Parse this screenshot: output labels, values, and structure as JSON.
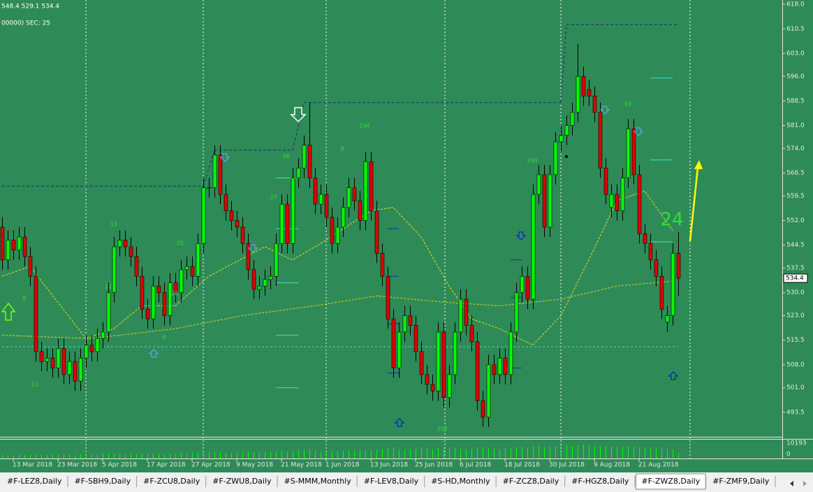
{
  "header": {
    "info": "548.4 529.1 534.4",
    "indicator": "00000)  SEC: 25"
  },
  "chart_data": {
    "type": "candlestick",
    "categories": [
      null,
      null,
      "13 Mar 2018",
      null,
      null,
      null,
      null,
      null,
      null,
      null,
      "23 Mar 2018",
      null,
      null,
      null,
      null,
      null,
      null,
      null,
      "5 Apr 2018",
      null,
      null,
      null,
      null,
      null,
      null,
      null,
      "17 Apr 2018",
      null,
      null,
      null,
      null,
      null,
      null,
      null,
      "27 Apr 2018",
      null,
      null,
      null,
      null,
      null,
      null,
      null,
      "9 May 2018",
      null,
      null,
      null,
      null,
      null,
      null,
      null,
      "21 May 2018",
      null,
      null,
      null,
      null,
      null,
      null,
      null,
      "1 Jun 2018",
      null,
      null,
      null,
      null,
      null,
      null,
      null,
      "13 Jun 2018",
      null,
      null,
      null,
      null,
      null,
      null,
      null,
      "25 Jun 2018",
      null,
      null,
      null,
      null,
      null,
      null,
      null,
      "6 Jul 2018",
      null,
      null,
      null,
      null,
      null,
      null,
      null,
      "18 Jul 2018",
      null,
      null,
      null,
      null,
      null,
      null,
      null,
      "30 Jul 2018",
      null,
      null,
      null,
      null,
      null,
      null,
      null,
      "9 Aug 2018",
      null,
      null,
      null,
      null,
      null,
      null,
      null,
      "21 Aug 2018",
      null,
      null,
      null,
      null,
      null,
      null,
      null
    ],
    "open": [
      550,
      540,
      546,
      543,
      547,
      541,
      535,
      512,
      509,
      510,
      507,
      513,
      505,
      509,
      503,
      510,
      514,
      512,
      516,
      518,
      530,
      544,
      546,
      544,
      541,
      535,
      525,
      522,
      532,
      530,
      523,
      533,
      530,
      537,
      538,
      535,
      545,
      562,
      562,
      572,
      560,
      555,
      552,
      550,
      545,
      537,
      531,
      532,
      534,
      535,
      545,
      557,
      545,
      565,
      568,
      575,
      565,
      557,
      560,
      553,
      545,
      550,
      556,
      562,
      558,
      552,
      570,
      555,
      542,
      535,
      522,
      507,
      518,
      523,
      520,
      512,
      505,
      502,
      500,
      518,
      498,
      505,
      518,
      528,
      520,
      515,
      497,
      492,
      508,
      505,
      510,
      505,
      518,
      530,
      535,
      528,
      560,
      566,
      550,
      566,
      576,
      578,
      581,
      585,
      596,
      592,
      590,
      585,
      568,
      556,
      560,
      555,
      565,
      580,
      566,
      548,
      545,
      540,
      535,
      521,
      523,
      542
    ],
    "high": [
      553,
      549,
      549,
      550,
      550,
      544,
      538,
      515,
      513,
      513,
      516,
      516,
      512,
      512,
      513,
      517,
      517,
      519,
      521,
      533,
      547,
      549,
      549,
      547,
      544,
      538,
      528,
      535,
      535,
      533,
      536,
      536,
      540,
      541,
      541,
      548,
      565,
      565,
      575,
      575,
      563,
      558,
      555,
      553,
      548,
      540,
      535,
      537,
      538,
      548,
      560,
      560,
      568,
      571,
      578,
      588,
      568,
      563,
      563,
      556,
      553,
      559,
      565,
      565,
      561,
      573,
      573,
      558,
      545,
      538,
      525,
      521,
      526,
      526,
      523,
      515,
      508,
      505,
      521,
      521,
      508,
      521,
      531,
      531,
      523,
      518,
      500,
      511,
      511,
      513,
      513,
      521,
      533,
      538,
      538,
      563,
      569,
      569,
      569,
      579,
      581,
      584,
      588,
      606,
      599,
      595,
      593,
      588,
      571,
      563,
      563,
      568,
      583,
      583,
      569,
      551,
      548,
      543,
      538,
      526,
      545,
      548.4
    ],
    "low": [
      537,
      537,
      540,
      540,
      538,
      532,
      509,
      506,
      506,
      504,
      504,
      502,
      502,
      500,
      500,
      507,
      509,
      509,
      513,
      515,
      527,
      541,
      541,
      538,
      532,
      522,
      519,
      519,
      527,
      520,
      520,
      527,
      527,
      534,
      532,
      532,
      542,
      559,
      559,
      557,
      552,
      549,
      547,
      542,
      534,
      528,
      528,
      529,
      531,
      532,
      542,
      542,
      542,
      562,
      565,
      562,
      554,
      554,
      550,
      542,
      542,
      547,
      553,
      555,
      549,
      549,
      552,
      539,
      532,
      519,
      504,
      504,
      515,
      517,
      509,
      502,
      499,
      497,
      497,
      495,
      495,
      502,
      515,
      517,
      512,
      494,
      489,
      489,
      502,
      502,
      502,
      502,
      515,
      527,
      525,
      525,
      557,
      547,
      547,
      563,
      573,
      575,
      578,
      582,
      587,
      587,
      582,
      565,
      557,
      553,
      552,
      552,
      562,
      563,
      545,
      542,
      537,
      532,
      522,
      518,
      520,
      529.1
    ],
    "close": [
      540,
      546,
      543,
      547,
      541,
      535,
      512,
      509,
      510,
      507,
      513,
      505,
      509,
      503,
      510,
      514,
      512,
      516,
      518,
      530,
      544,
      546,
      544,
      541,
      535,
      525,
      522,
      532,
      530,
      523,
      533,
      530,
      537,
      538,
      535,
      545,
      562,
      562,
      572,
      560,
      555,
      552,
      550,
      545,
      537,
      531,
      532,
      534,
      535,
      545,
      557,
      545,
      565,
      568,
      575,
      565,
      557,
      560,
      553,
      545,
      550,
      556,
      562,
      558,
      552,
      570,
      555,
      542,
      535,
      522,
      507,
      518,
      523,
      520,
      512,
      505,
      502,
      500,
      518,
      498,
      505,
      518,
      528,
      520,
      515,
      497,
      492,
      508,
      505,
      510,
      505,
      518,
      530,
      535,
      528,
      560,
      566,
      550,
      566,
      576,
      578,
      581,
      585,
      596,
      590,
      590,
      585,
      568,
      560,
      560,
      555,
      565,
      580,
      566,
      548,
      545,
      540,
      535,
      525,
      523,
      542,
      534.4
    ],
    "up_color": "#00ff00",
    "down_color": "#e00000",
    "ylim": [
      485.8,
      619.3
    ],
    "yticks": [
      {
        "value": 618,
        "label": "618.0"
      },
      610.5,
      {
        "value": 603,
        "label": "603.0"
      },
      {
        "value": 596,
        "label": "596.0"
      },
      588.5,
      {
        "value": 581,
        "label": "581.0"
      },
      {
        "value": 574,
        "label": "574.0"
      },
      566.5,
      559.5,
      {
        "value": 552,
        "label": "552.0"
      },
      544.5,
      537.5,
      {
        "value": 530,
        "label": "530.0"
      },
      {
        "value": 523,
        "label": "523.0"
      },
      515.5,
      {
        "value": 508,
        "label": "508.0"
      },
      {
        "value": 501,
        "label": "501.0"
      },
      493.5
    ],
    "volume": {
      "color": "#00ff00",
      "ylim": [
        0,
        13000
      ],
      "yticks": [
        10193,
        0
      ],
      "values": [
        2100,
        2400,
        1900,
        2600,
        2300,
        2800,
        3100,
        2500,
        2200,
        2700,
        2400,
        2900,
        2600,
        2300,
        2800,
        3000,
        2700,
        2500,
        3200,
        3500,
        3100,
        2800,
        2600,
        3300,
        3000,
        2900,
        3400,
        3600,
        3100,
        2900,
        3300,
        3500,
        3800,
        3400,
        3600,
        4100,
        4500,
        3900,
        4300,
        4000,
        3800,
        3600,
        3900,
        4200,
        4600,
        4100,
        3700,
        3900,
        4400,
        4800,
        5200,
        4600,
        5000,
        5400,
        5800,
        6200,
        5100,
        4800,
        4600,
        5000,
        4700,
        5200,
        5500,
        5000,
        4800,
        5300,
        5600,
        5900,
        6300,
        6800,
        7200,
        6100,
        5800,
        6000,
        6500,
        7000,
        6400,
        6100,
        6800,
        7300,
        6600,
        7000,
        6200,
        5900,
        6400,
        7100,
        7600,
        6800,
        6300,
        6000,
        6500,
        6900,
        7400,
        7800,
        7000,
        8200,
        8600,
        7600,
        8000,
        8400,
        8800,
        9100,
        8500,
        8900,
        9400,
        8700,
        8300,
        7900,
        8600,
        8100,
        7700,
        8000,
        8500,
        7900,
        7400,
        7100,
        6800,
        7300,
        6600,
        6200,
        5900,
        3800
      ]
    },
    "lines": [
      {
        "color": "#f0e020",
        "x": [
          0,
          5,
          15,
          20,
          25,
          31,
          37,
          47,
          52,
          58,
          66,
          70,
          75,
          80,
          84,
          89,
          95,
          100,
          105,
          110,
          115,
          120
        ],
        "values": [
          535,
          538,
          516,
          519,
          526,
          526,
          535,
          544,
          540,
          546,
          555,
          556,
          547,
          532,
          522,
          519,
          514,
          523,
          540,
          558,
          561,
          549
        ]
      },
      {
        "color": "#e8d020",
        "x": [
          0,
          16,
          31,
          43,
          56,
          67,
          80,
          89,
          100,
          110,
          120
        ],
        "values": [
          517,
          516,
          519,
          523,
          526,
          529,
          527,
          526,
          528,
          532,
          533.5
        ]
      }
    ],
    "levels": [
      {
        "color": "#1a2a6c",
        "dash": "4 3",
        "segments": [
          [
            0,
            36,
            562.5
          ],
          [
            38,
            52,
            573.5
          ],
          [
            54,
            100,
            588
          ],
          [
            101,
            121,
            611.8
          ]
        ]
      },
      {
        "color": "#40e0d0",
        "dash": "3 3",
        "segments": [
          [
            0,
            121,
            513.5
          ]
        ]
      },
      {
        "color": "#40e0d0",
        "dash": "",
        "segments": [
          [
            49,
            53,
            565
          ],
          [
            49,
            53,
            549.5
          ],
          [
            49,
            53,
            533
          ],
          [
            49,
            53,
            517
          ],
          [
            49,
            53,
            501
          ],
          [
            116,
            120,
            595.5
          ],
          [
            116,
            120,
            570.5
          ],
          [
            116,
            120,
            545.5
          ]
        ]
      },
      {
        "color": "#1a2a9c",
        "dash": "",
        "segments": [
          [
            69,
            71,
            549.5
          ],
          [
            69,
            71,
            535
          ],
          [
            69,
            71,
            520.5
          ],
          [
            69,
            71,
            505.5
          ],
          [
            91,
            93,
            540
          ],
          [
            91,
            93,
            528.5
          ],
          [
            91,
            93,
            507
          ]
        ]
      }
    ],
    "annotations": [
      "13",
      "12",
      "25",
      "26",
      "9",
      "8",
      "11",
      "56",
      "27",
      "234",
      "9",
      "299",
      "10",
      "358"
    ],
    "big_label": "24"
  },
  "tabs": [
    "#F-LEZ8,Daily",
    "#F-SBH9,Daily",
    "#F-ZCU8,Daily",
    "#F-ZWU8,Daily",
    "#S-MMM,Monthly",
    "#F-LEV8,Daily",
    "#S-HD,Monthly",
    "#F-ZCZ8,Daily",
    "#F-HGZ8,Daily",
    "#F-ZWZ8,Daily",
    "#F-ZMF9,Daily"
  ],
  "active_tab": 9
}
